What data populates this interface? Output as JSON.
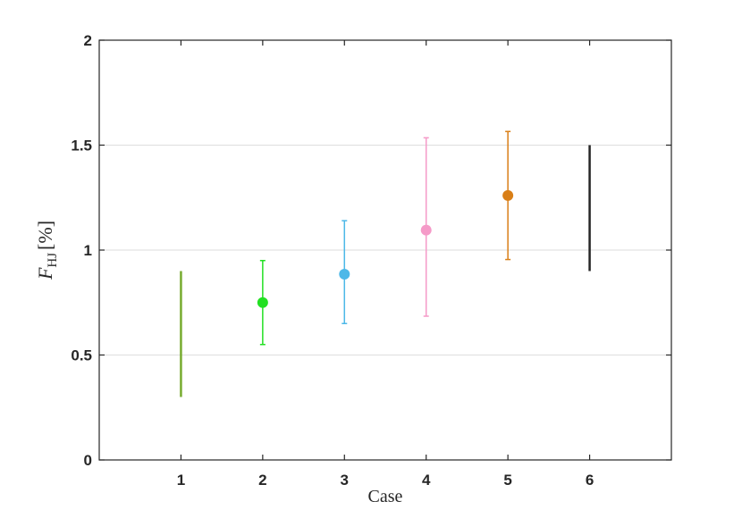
{
  "chart_data": {
    "type": "errorbar",
    "xlabel": "Case",
    "ylabel": {
      "symbol": "F",
      "subscript": "HJ",
      "unit": "[%]"
    },
    "xlim": [
      0,
      7
    ],
    "ylim": [
      0,
      2
    ],
    "xticks": [
      1,
      2,
      3,
      4,
      5,
      6
    ],
    "yticks": [
      0,
      0.5,
      1,
      1.5,
      2
    ],
    "ytick_labels": [
      "0",
      "0.5",
      "1",
      "1.5",
      "2"
    ],
    "grid": "horizontal",
    "cases": [
      {
        "case": 1,
        "low": 0.3,
        "high": 0.9,
        "center": null,
        "color": "#77ac30",
        "marker": false,
        "caps": false
      },
      {
        "case": 2,
        "low": 0.55,
        "high": 0.95,
        "center": 0.75,
        "color": "#22e022",
        "marker": true,
        "caps": true
      },
      {
        "case": 3,
        "low": 0.65,
        "high": 1.14,
        "center": 0.885,
        "color": "#4db8e8",
        "marker": true,
        "caps": true
      },
      {
        "case": 4,
        "low": 0.685,
        "high": 1.535,
        "center": 1.095,
        "color": "#f59ac8",
        "marker": true,
        "caps": true
      },
      {
        "case": 5,
        "low": 0.955,
        "high": 1.565,
        "center": 1.26,
        "color": "#d97f17",
        "marker": true,
        "caps": true
      },
      {
        "case": 6,
        "low": 0.9,
        "high": 1.5,
        "center": null,
        "color": "#262626",
        "marker": false,
        "caps": false
      }
    ]
  }
}
